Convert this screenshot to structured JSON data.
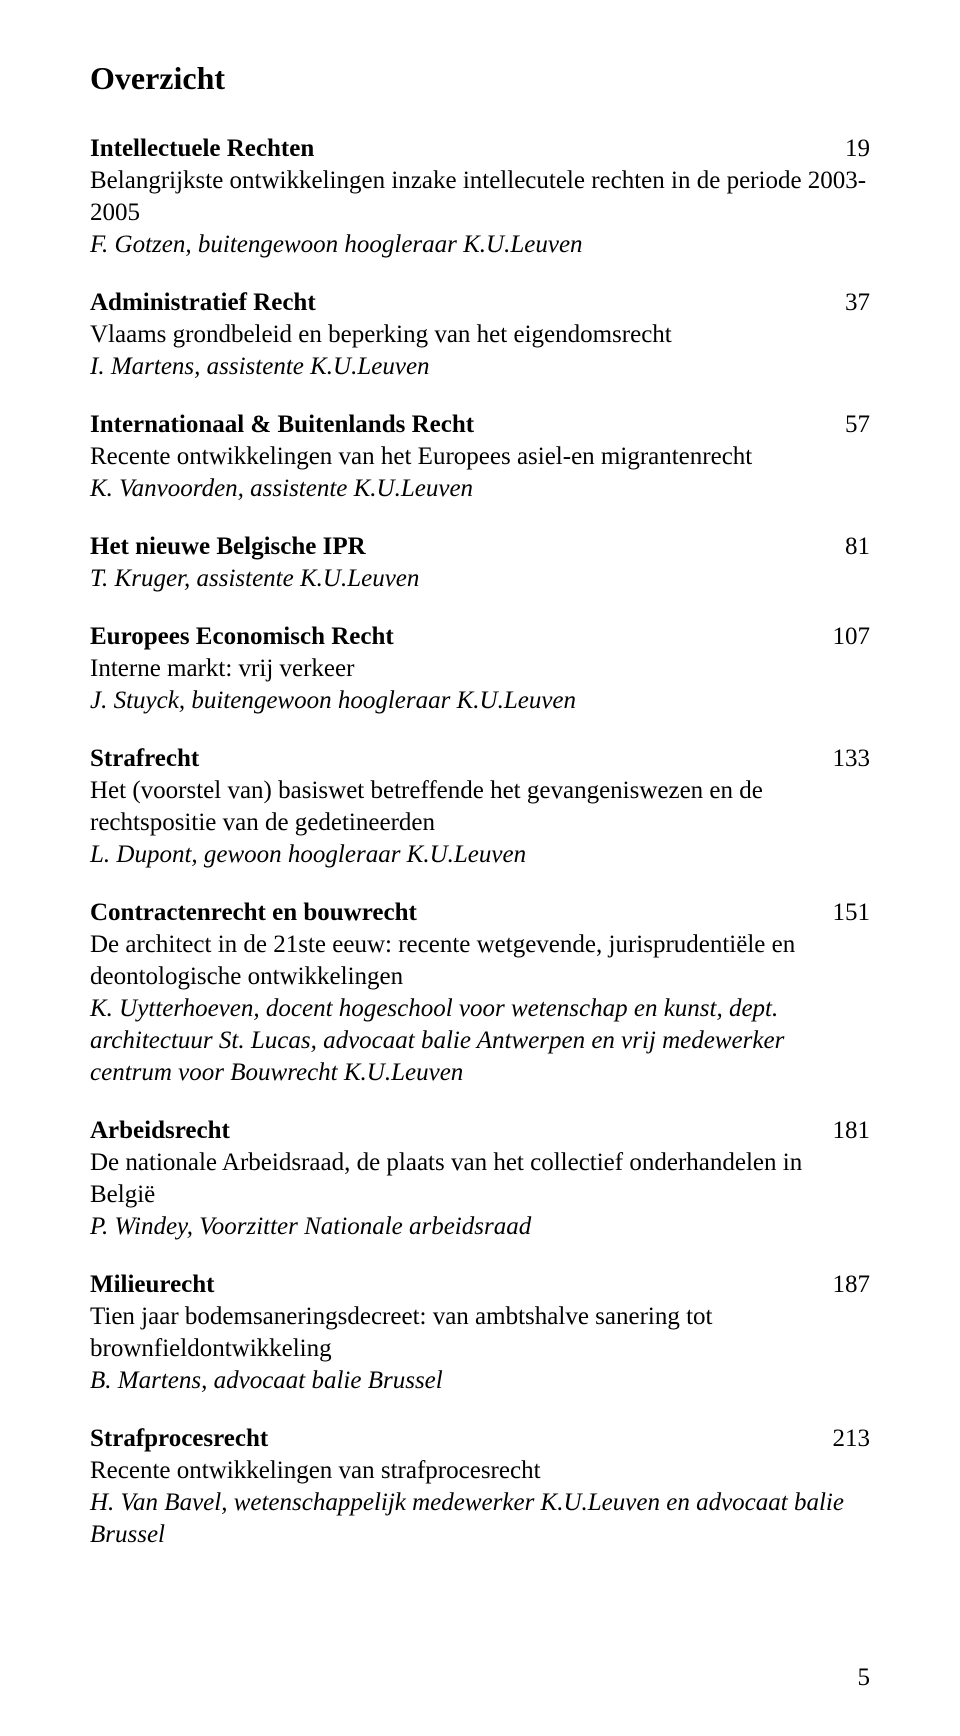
{
  "title": "Overzicht",
  "footer_page": "5",
  "entries": [
    {
      "heading": "Intellectuele Rechten",
      "page": "19",
      "sub": "Belangrijkste ontwikkelingen inzake intellecutele rechten in de periode 2003-2005",
      "author": "F. Gotzen, buitengewoon hoogleraar K.U.Leuven"
    },
    {
      "heading": "Administratief Recht",
      "page": "37",
      "sub": "Vlaams grondbeleid en beperking van het eigendomsrecht",
      "author": "I. Martens, assistente K.U.Leuven"
    },
    {
      "heading": "Internationaal & Buitenlands Recht",
      "page": "57",
      "sub": "Recente ontwikkelingen van het Europees asiel-en migrantenrecht",
      "author": "K. Vanvoorden, assistente K.U.Leuven"
    },
    {
      "heading": "Het nieuwe Belgische IPR",
      "page": "81",
      "sub": "",
      "author": "T. Kruger, assistente K.U.Leuven"
    },
    {
      "heading": "Europees Economisch Recht",
      "page": "107",
      "sub": "Interne markt: vrij verkeer",
      "author": "J. Stuyck, buitengewoon hoogleraar K.U.Leuven"
    },
    {
      "heading": "Strafrecht",
      "page": "133",
      "sub": "Het (voorstel van) basiswet betreffende het gevangeniswezen en de rechtspositie van de gedetineerden",
      "author": "L. Dupont, gewoon hoogleraar K.U.Leuven"
    },
    {
      "heading": "Contractenrecht en bouwrecht",
      "page": "151",
      "sub": "De architect in de 21ste eeuw: recente wetgevende, jurisprudentiële en deontologische ontwikkelingen",
      "author": "K. Uytterhoeven, docent hogeschool voor wetenschap en kunst, dept. architectuur St. Lucas, advocaat balie Antwerpen en vrij medewerker centrum voor Bouwrecht K.U.Leuven"
    },
    {
      "heading": "Arbeidsrecht",
      "page": "181",
      "sub": "De nationale Arbeidsraad, de plaats van het collectief onderhandelen in België",
      "author": "P. Windey, Voorzitter Nationale arbeidsraad"
    },
    {
      "heading": "Milieurecht",
      "page": "187",
      "sub": "Tien jaar bodemsaneringsdecreet: van ambtshalve sanering tot brownfieldontwikkeling",
      "author": "B. Martens, advocaat balie Brussel"
    },
    {
      "heading": "Strafprocesrecht",
      "page": "213",
      "sub": "Recente ontwikkelingen van strafprocesrecht",
      "author": "H. Van Bavel, wetenschappelijk medewerker K.U.Leuven en advocaat balie Brussel"
    }
  ]
}
